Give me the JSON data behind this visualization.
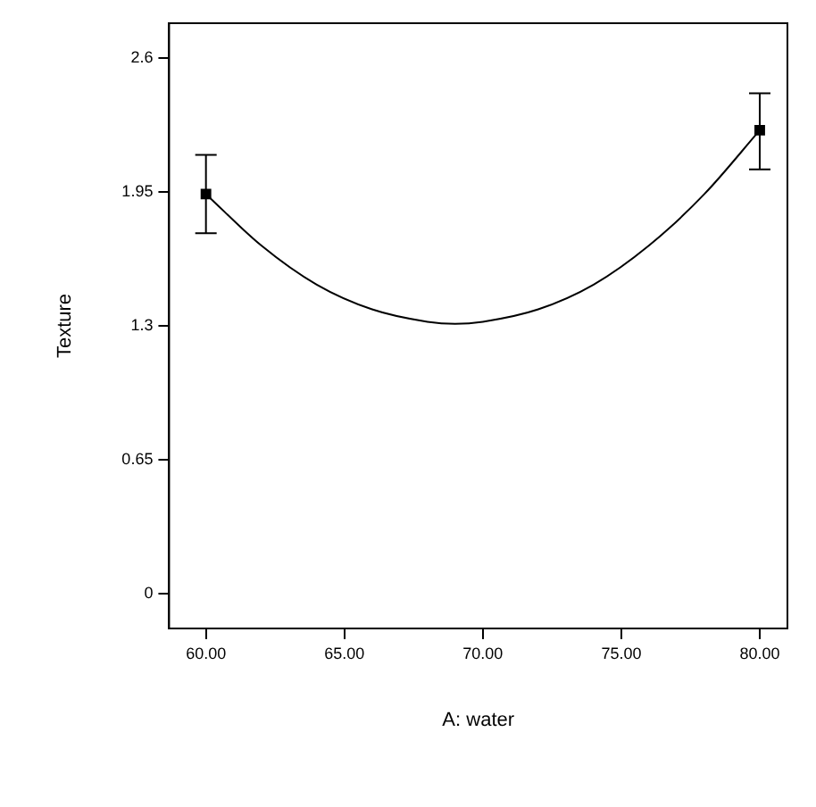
{
  "chart_data": {
    "type": "scatter",
    "xlabel": "A: water",
    "ylabel": "Texture",
    "xlim": [
      58.67,
      81
    ],
    "ylim": [
      -0.17,
      2.77
    ],
    "xticks": [
      {
        "value": 60,
        "label": "60.00"
      },
      {
        "value": 65,
        "label": "65.00"
      },
      {
        "value": 70,
        "label": "70.00"
      },
      {
        "value": 75,
        "label": "75.00"
      },
      {
        "value": 80,
        "label": "80.00"
      }
    ],
    "yticks": [
      0,
      0.65,
      1.3,
      1.95,
      2.6
    ],
    "grid": false,
    "legend": false,
    "series": [
      {
        "type": "line",
        "color": "#000000",
        "marker": "none",
        "x": [
          60,
          62,
          64,
          66,
          68,
          69,
          70,
          72,
          74,
          76,
          78,
          80
        ],
        "values": [
          1.94,
          1.69,
          1.5,
          1.38,
          1.32,
          1.31,
          1.32,
          1.38,
          1.5,
          1.69,
          1.94,
          2.25
        ]
      },
      {
        "type": "scatter",
        "color": "#000000",
        "marker": "square",
        "x": [
          60,
          80
        ],
        "values": [
          1.94,
          2.25
        ],
        "errors": [
          [
            1.75,
            2.13
          ],
          [
            2.06,
            2.43
          ]
        ]
      }
    ]
  }
}
